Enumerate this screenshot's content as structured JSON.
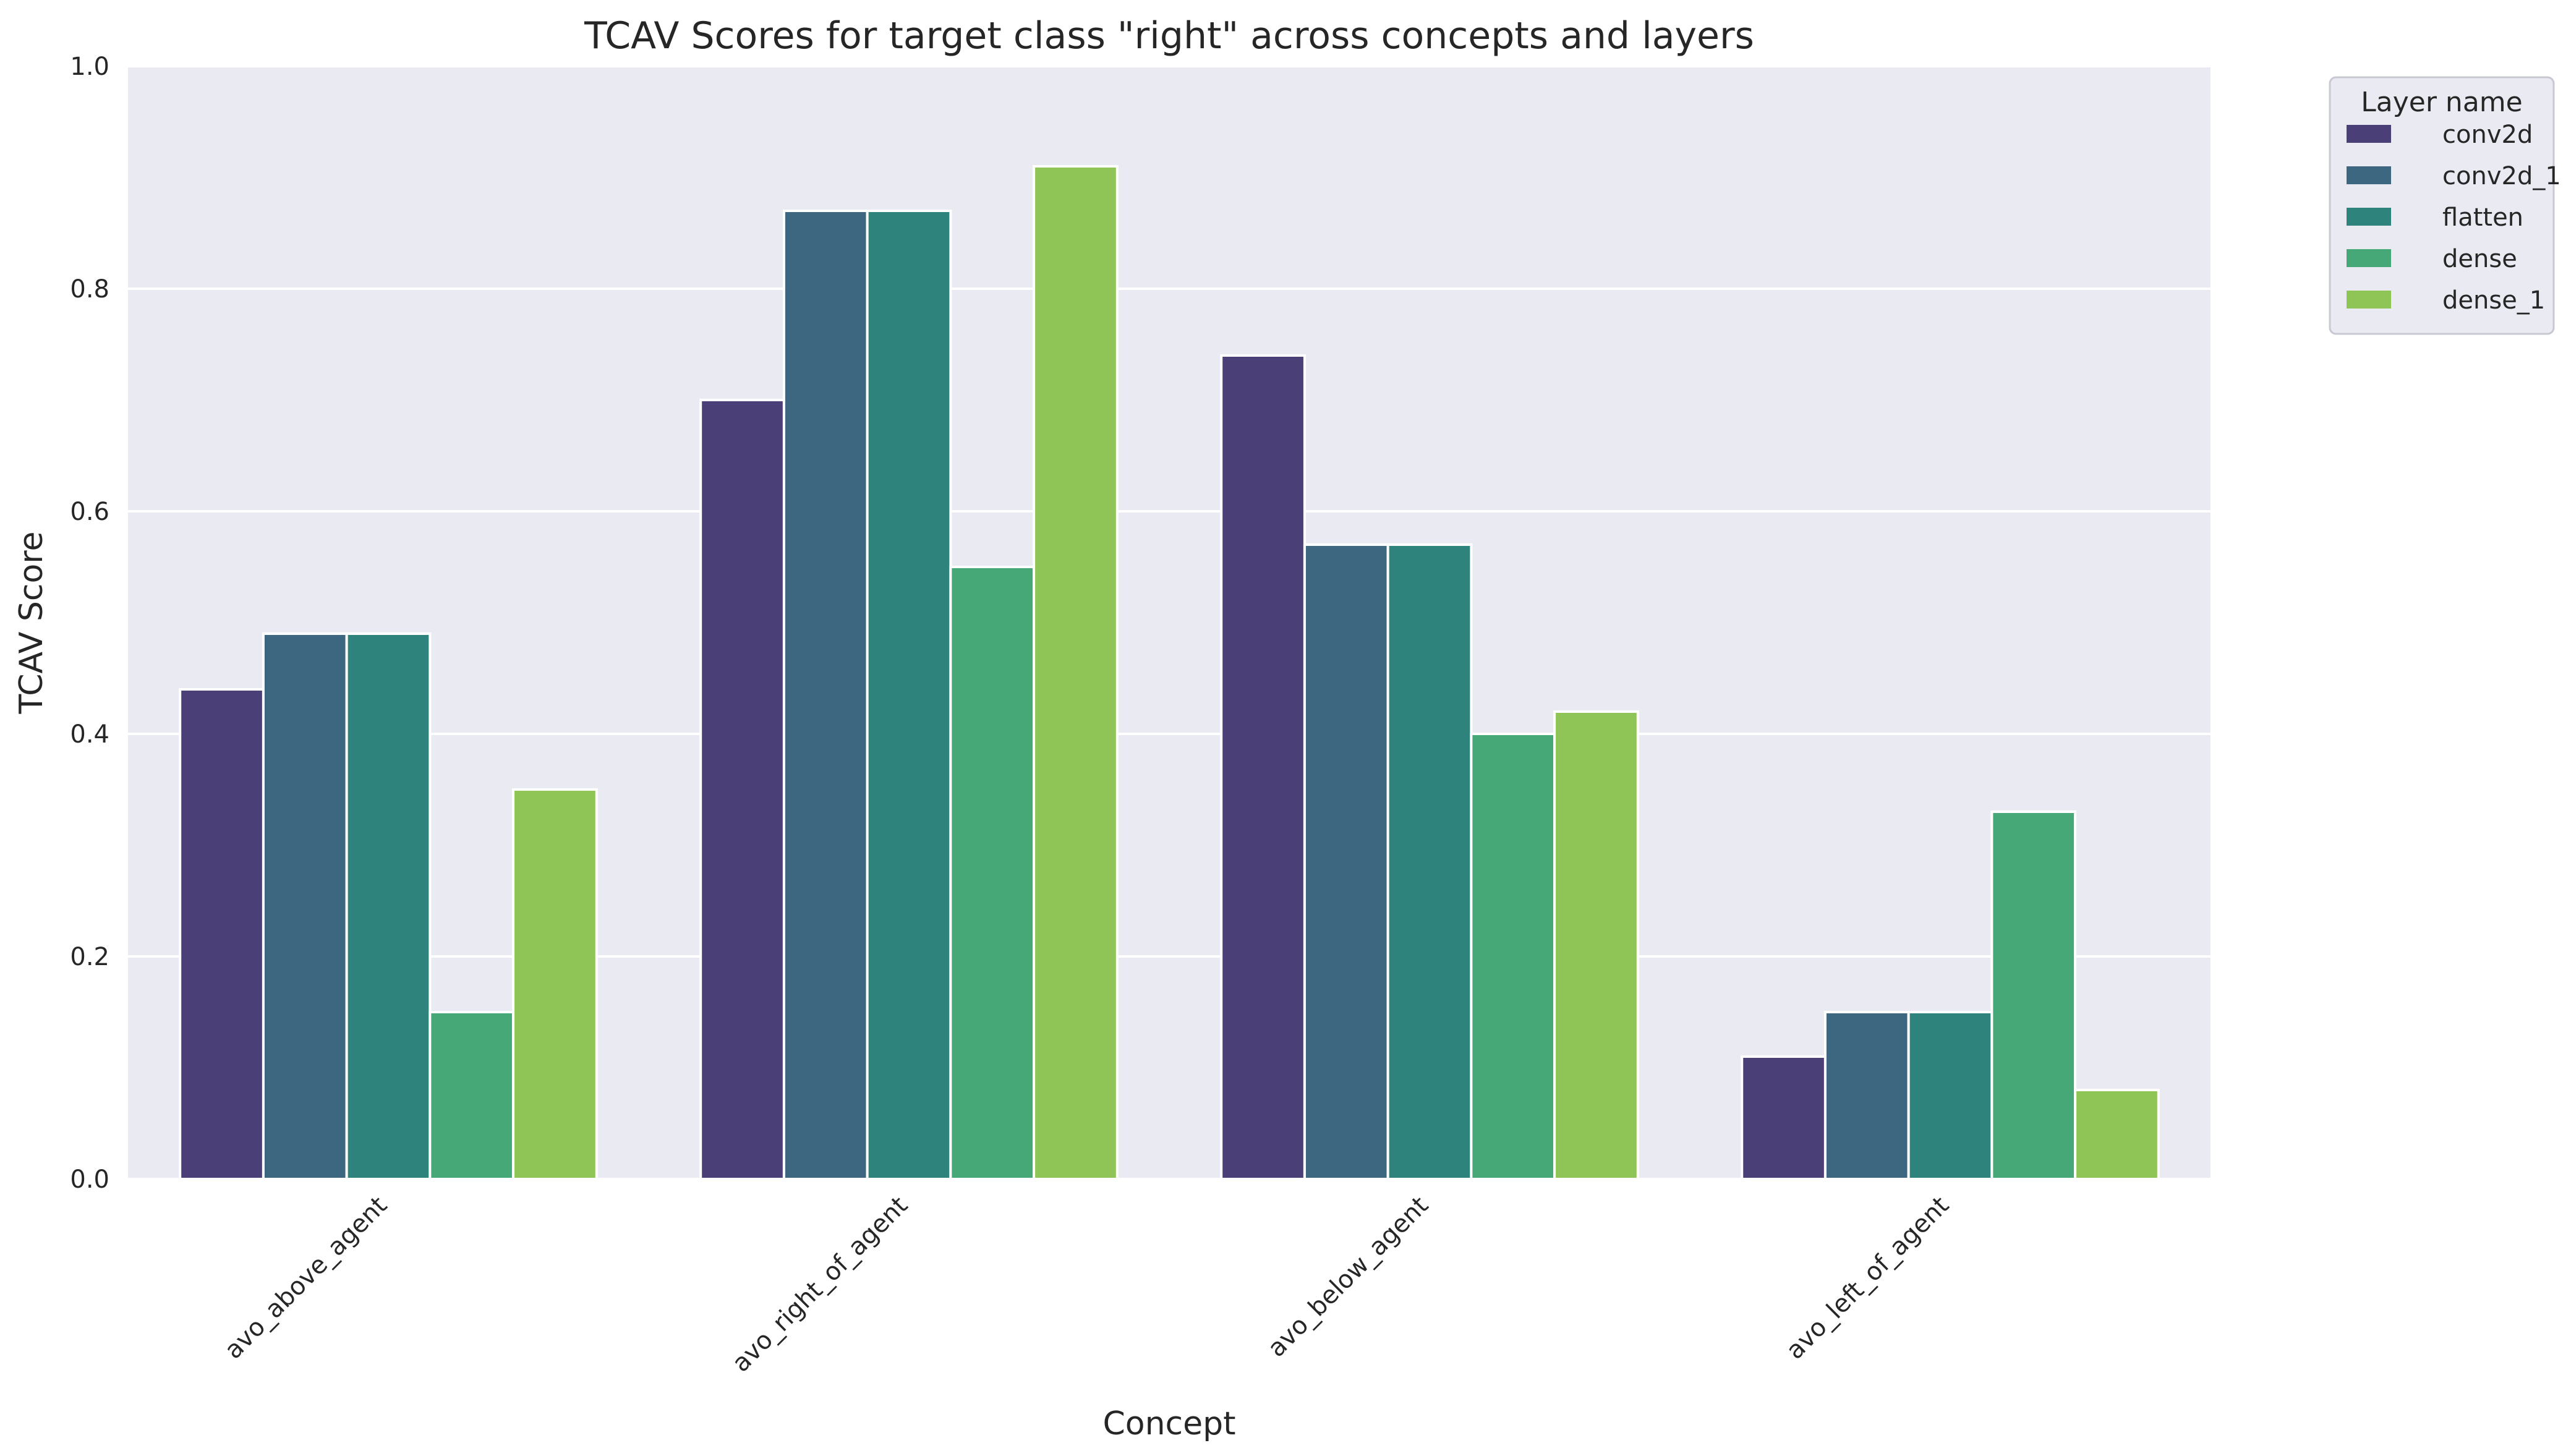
{
  "chart_data": {
    "type": "bar",
    "title": "TCAV Scores for target class \"right\" across concepts and layers",
    "xlabel": "Concept",
    "ylabel": "TCAV Score",
    "ylim": [
      0,
      1.0
    ],
    "yticks": [
      "0.0",
      "0.2",
      "0.4",
      "0.6",
      "0.8",
      "1.0"
    ],
    "grid": true,
    "categories": [
      "avo_above_agent",
      "avo_right_of_agent",
      "avo_below_agent",
      "avo_left_of_agent"
    ],
    "legend": {
      "title": "Layer name",
      "placement": "outside-top-right"
    },
    "series": [
      {
        "name": "conv2d",
        "color": "#4a3f77",
        "values": [
          0.44,
          0.7,
          0.74,
          0.11
        ]
      },
      {
        "name": "conv2d_1",
        "color": "#3d6680",
        "values": [
          0.49,
          0.87,
          0.57,
          0.15
        ]
      },
      {
        "name": "flatten",
        "color": "#2e837d",
        "values": [
          0.49,
          0.87,
          0.57,
          0.15
        ]
      },
      {
        "name": "dense",
        "color": "#45a876",
        "values": [
          0.15,
          0.55,
          0.4,
          0.33
        ]
      },
      {
        "name": "dense_1",
        "color": "#8fc556",
        "values": [
          0.35,
          0.91,
          0.42,
          0.08
        ]
      }
    ],
    "colors": {
      "plot_background": "#eaeaf2",
      "grid": "#ffffff"
    }
  }
}
